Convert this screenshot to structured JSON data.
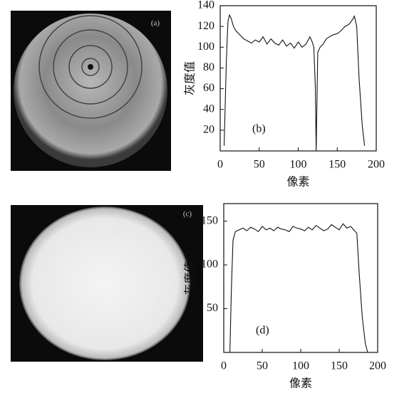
{
  "images": [
    {
      "label": "(a)"
    },
    {
      "label": "(c)"
    }
  ],
  "chart_data": [
    {
      "type": "line",
      "label": "(b)",
      "xlabel": "像素",
      "ylabel": "灰度值",
      "xlim": [
        0,
        200
      ],
      "ylim": [
        0,
        140
      ],
      "xticks": [
        0,
        50,
        100,
        150,
        200
      ],
      "yticks": [
        20,
        40,
        60,
        80,
        100,
        120,
        140
      ],
      "color": "#111111",
      "x": [
        5,
        8,
        10,
        12,
        14,
        17,
        20,
        25,
        30,
        35,
        40,
        45,
        50,
        55,
        60,
        65,
        70,
        75,
        80,
        85,
        90,
        95,
        100,
        105,
        110,
        115,
        118,
        120,
        122,
        123,
        125,
        128,
        132,
        136,
        140,
        145,
        150,
        155,
        160,
        165,
        170,
        172,
        175,
        178,
        182,
        185
      ],
      "values": [
        5,
        90,
        125,
        131,
        128,
        120,
        116,
        112,
        108,
        106,
        104,
        107,
        105,
        110,
        103,
        108,
        104,
        102,
        107,
        101,
        104,
        99,
        105,
        100,
        103,
        110,
        105,
        100,
        60,
        0,
        95,
        100,
        103,
        108,
        110,
        112,
        113,
        116,
        120,
        122,
        127,
        130,
        120,
        70,
        25,
        5
      ]
    },
    {
      "type": "line",
      "label": "(d)",
      "xlabel": "像素",
      "ylabel": "灰度值",
      "xlim": [
        0,
        200
      ],
      "ylim": [
        0,
        170
      ],
      "xticks": [
        0,
        50,
        100,
        150,
        200
      ],
      "yticks": [
        50,
        100,
        150
      ],
      "color": "#111111",
      "x": [
        8,
        10,
        12,
        15,
        20,
        25,
        30,
        35,
        40,
        45,
        50,
        55,
        60,
        65,
        70,
        75,
        80,
        85,
        90,
        95,
        100,
        105,
        110,
        115,
        120,
        125,
        130,
        135,
        140,
        145,
        150,
        155,
        160,
        165,
        170,
        173,
        176,
        180,
        184,
        187
      ],
      "values": [
        0,
        75,
        128,
        138,
        140,
        142,
        139,
        143,
        141,
        138,
        144,
        140,
        142,
        139,
        143,
        141,
        140,
        138,
        144,
        142,
        141,
        139,
        143,
        140,
        145,
        142,
        139,
        141,
        146,
        143,
        140,
        147,
        142,
        144,
        139,
        136,
        90,
        40,
        10,
        0
      ]
    }
  ]
}
